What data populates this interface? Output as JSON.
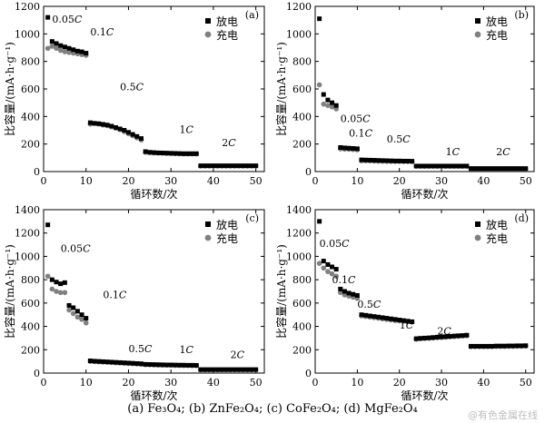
{
  "caption": "(a) Fe₃O₄; (b) ZnFe₂O₄; (c) CoFe₂O₄; (d) MgFe₂O₄",
  "watermark": "@有色金属在线",
  "chart_data": [
    {
      "type": "scatter",
      "panel_label": "(a)",
      "xlabel": "循环数/次",
      "ylabel": "比容量/(mA·h·g⁻¹)",
      "xlim": [
        0,
        52
      ],
      "ylim": [
        0,
        1200
      ],
      "xticks": [
        0,
        10,
        20,
        30,
        40,
        50
      ],
      "yticks": [
        0,
        200,
        400,
        600,
        800,
        1000,
        1200
      ],
      "legend": {
        "position": "top-right"
      },
      "series": [
        {
          "name": "放电",
          "marker": "square",
          "color": "#000000",
          "x": [
            1,
            2,
            3,
            4,
            5,
            6,
            7,
            8,
            9,
            10,
            11,
            12,
            13,
            14,
            15,
            16,
            17,
            18,
            19,
            20,
            21,
            22,
            23,
            24,
            25,
            26,
            27,
            28,
            29,
            30,
            31,
            32,
            33,
            34,
            35,
            36,
            37,
            38,
            39,
            40,
            41,
            42,
            43,
            44,
            45,
            46,
            47,
            48,
            49,
            50
          ],
          "y": [
            1120,
            945,
            930,
            915,
            905,
            895,
            885,
            875,
            870,
            860,
            355,
            350,
            348,
            343,
            338,
            330,
            320,
            310,
            300,
            285,
            270,
            255,
            240,
            145,
            140,
            138,
            136,
            135,
            134,
            133,
            132,
            131,
            130,
            130,
            130,
            130,
            42,
            42,
            42,
            42,
            42,
            42,
            42,
            42,
            42,
            42,
            42,
            42,
            42,
            42
          ]
        },
        {
          "name": "充电",
          "marker": "circle",
          "color": "#808080",
          "x": [
            1,
            2,
            3,
            4,
            5,
            6,
            7,
            8,
            9,
            10,
            11,
            12,
            13,
            14,
            15,
            16,
            17,
            18,
            19,
            20,
            21,
            22,
            23,
            24,
            25,
            26,
            27,
            28,
            29,
            30,
            31,
            32,
            33,
            34,
            35,
            36,
            37,
            38,
            39,
            40,
            41,
            42,
            43,
            44,
            45,
            46,
            47,
            48,
            49,
            50
          ],
          "y": [
            895,
            910,
            895,
            880,
            870,
            865,
            860,
            855,
            850,
            845,
            345,
            350,
            345,
            338,
            333,
            325,
            315,
            305,
            290,
            275,
            260,
            245,
            230,
            140,
            137,
            135,
            134,
            133,
            132,
            131,
            130,
            129,
            128,
            128,
            128,
            128,
            40,
            40,
            40,
            40,
            40,
            40,
            40,
            40,
            40,
            40,
            40,
            40,
            40,
            40
          ]
        }
      ],
      "annotations": [
        {
          "text": "0.05C",
          "x": 2,
          "y": 1080
        },
        {
          "text": "0.1C",
          "x": 11,
          "y": 990
        },
        {
          "text": "0.5C",
          "x": 18,
          "y": 590
        },
        {
          "text": "1C",
          "x": 32,
          "y": 280
        },
        {
          "text": "2C",
          "x": 42,
          "y": 185
        }
      ]
    },
    {
      "type": "scatter",
      "panel_label": "(b)",
      "xlabel": "循环数/次",
      "ylabel": "比容量/(mA·h·g⁻¹)",
      "xlim": [
        0,
        52
      ],
      "ylim": [
        0,
        1200
      ],
      "xticks": [
        0,
        10,
        20,
        30,
        40,
        50
      ],
      "yticks": [
        0,
        200,
        400,
        600,
        800,
        1000,
        1200
      ],
      "legend": {
        "position": "top-right"
      },
      "series": [
        {
          "name": "放电",
          "marker": "square",
          "color": "#000000",
          "x": [
            1,
            2,
            3,
            4,
            5,
            6,
            7,
            8,
            9,
            10,
            11,
            12,
            13,
            14,
            15,
            16,
            17,
            18,
            19,
            20,
            21,
            22,
            23,
            24,
            25,
            26,
            27,
            28,
            29,
            30,
            31,
            32,
            33,
            34,
            35,
            36,
            37,
            38,
            39,
            40,
            41,
            42,
            43,
            44,
            45,
            46,
            47,
            48,
            49,
            50
          ],
          "y": [
            1110,
            560,
            520,
            500,
            480,
            175,
            172,
            170,
            168,
            166,
            85,
            84,
            83,
            82,
            81,
            80,
            79,
            78,
            77,
            77,
            76,
            76,
            75,
            40,
            40,
            40,
            40,
            40,
            40,
            40,
            40,
            40,
            40,
            40,
            40,
            40,
            22,
            22,
            22,
            22,
            22,
            22,
            22,
            22,
            22,
            22,
            22,
            22,
            22,
            22
          ]
        },
        {
          "name": "充电",
          "marker": "circle",
          "color": "#808080",
          "x": [
            1,
            2,
            3,
            4,
            5,
            6,
            7,
            8,
            9,
            10,
            11,
            12,
            13,
            14,
            15,
            16,
            17,
            18,
            19,
            20,
            21,
            22,
            23,
            24,
            25,
            26,
            27,
            28,
            29,
            30,
            31,
            32,
            33,
            34,
            35,
            36,
            37,
            38,
            39,
            40,
            41,
            42,
            43,
            44,
            45,
            46,
            47,
            48,
            49,
            50
          ],
          "y": [
            630,
            490,
            480,
            470,
            455,
            165,
            163,
            162,
            160,
            158,
            78,
            78,
            77,
            76,
            75,
            75,
            74,
            74,
            73,
            73,
            72,
            72,
            72,
            38,
            38,
            38,
            38,
            38,
            38,
            38,
            38,
            38,
            38,
            38,
            38,
            38,
            20,
            20,
            20,
            20,
            20,
            20,
            20,
            20,
            20,
            20,
            20,
            20,
            20,
            20
          ]
        }
      ],
      "annotations": [
        {
          "text": "0.05C",
          "x": 6,
          "y": 360
        },
        {
          "text": "0.1C",
          "x": 8,
          "y": 255
        },
        {
          "text": "0.5C",
          "x": 17,
          "y": 210
        },
        {
          "text": "1C",
          "x": 31,
          "y": 120
        },
        {
          "text": "2C",
          "x": 43,
          "y": 120
        }
      ]
    },
    {
      "type": "scatter",
      "panel_label": "(c)",
      "xlabel": "循环数/次",
      "ylabel": "比容量/(mA·h·g⁻¹)",
      "xlim": [
        0,
        52
      ],
      "ylim": [
        0,
        1400
      ],
      "xticks": [
        0,
        10,
        20,
        30,
        40,
        50
      ],
      "yticks": [
        0,
        200,
        400,
        600,
        800,
        1000,
        1200,
        1400
      ],
      "legend": {
        "position": "top-right"
      },
      "series": [
        {
          "name": "放电",
          "marker": "square",
          "color": "#000000",
          "x": [
            1,
            2,
            3,
            4,
            5,
            6,
            7,
            8,
            9,
            10,
            11,
            12,
            13,
            14,
            15,
            16,
            17,
            18,
            19,
            20,
            21,
            22,
            23,
            24,
            25,
            26,
            27,
            28,
            29,
            30,
            31,
            32,
            33,
            34,
            35,
            36,
            37,
            38,
            39,
            40,
            41,
            42,
            43,
            44,
            45,
            46,
            47,
            48,
            49,
            50
          ],
          "y": [
            1270,
            800,
            780,
            765,
            775,
            580,
            560,
            530,
            500,
            470,
            105,
            102,
            100,
            98,
            96,
            94,
            92,
            90,
            88,
            86,
            84,
            82,
            80,
            75,
            74,
            73,
            72,
            71,
            70,
            70,
            69,
            68,
            68,
            67,
            67,
            66,
            30,
            30,
            30,
            30,
            30,
            30,
            30,
            30,
            30,
            30,
            30,
            30,
            30,
            30
          ]
        },
        {
          "name": "充电",
          "marker": "circle",
          "color": "#808080",
          "x": [
            1,
            2,
            3,
            4,
            5,
            6,
            7,
            8,
            9,
            10,
            11,
            12,
            13,
            14,
            15,
            16,
            17,
            18,
            19,
            20,
            21,
            22,
            23,
            24,
            25,
            26,
            27,
            28,
            29,
            30,
            31,
            32,
            33,
            34,
            35,
            36,
            37,
            38,
            39,
            40,
            41,
            42,
            43,
            44,
            45,
            46,
            47,
            48,
            49,
            50
          ],
          "y": [
            830,
            720,
            700,
            690,
            690,
            540,
            510,
            480,
            460,
            430,
            100,
            98,
            96,
            94,
            92,
            90,
            88,
            86,
            84,
            82,
            80,
            78,
            76,
            72,
            71,
            70,
            69,
            68,
            68,
            67,
            66,
            66,
            65,
            65,
            64,
            64,
            28,
            28,
            28,
            28,
            28,
            28,
            28,
            28,
            28,
            28,
            28,
            28,
            28,
            28
          ]
        }
      ],
      "annotations": [
        {
          "text": "0.05C",
          "x": 4,
          "y": 1040
        },
        {
          "text": "0.1C",
          "x": 14,
          "y": 640
        },
        {
          "text": "0.5C",
          "x": 20,
          "y": 180
        },
        {
          "text": "1C",
          "x": 32,
          "y": 170
        },
        {
          "text": "2C",
          "x": 44,
          "y": 130
        }
      ]
    },
    {
      "type": "scatter",
      "panel_label": "(d)",
      "xlabel": "循环数/次",
      "ylabel": "比容量/(mA·h·g⁻¹)",
      "xlim": [
        0,
        52
      ],
      "ylim": [
        0,
        1400
      ],
      "xticks": [
        0,
        10,
        20,
        30,
        40,
        50
      ],
      "yticks": [
        0,
        200,
        400,
        600,
        800,
        1000,
        1200,
        1400
      ],
      "legend": {
        "position": "top-right"
      },
      "series": [
        {
          "name": "放电",
          "marker": "square",
          "color": "#000000",
          "x": [
            1,
            2,
            3,
            4,
            5,
            6,
            7,
            8,
            9,
            10,
            11,
            12,
            13,
            14,
            15,
            16,
            17,
            18,
            19,
            20,
            21,
            22,
            23,
            24,
            25,
            26,
            27,
            28,
            29,
            30,
            31,
            32,
            33,
            34,
            35,
            36,
            37,
            38,
            39,
            40,
            41,
            42,
            43,
            44,
            45,
            46,
            47,
            48,
            49,
            50
          ],
          "y": [
            1300,
            960,
            930,
            910,
            890,
            720,
            700,
            685,
            675,
            665,
            500,
            495,
            490,
            485,
            480,
            475,
            470,
            465,
            460,
            455,
            450,
            445,
            440,
            295,
            298,
            300,
            302,
            305,
            308,
            310,
            312,
            315,
            318,
            320,
            322,
            325,
            230,
            230,
            230,
            230,
            230,
            230,
            232,
            232,
            232,
            233,
            233,
            234,
            234,
            235
          ]
        },
        {
          "name": "充电",
          "marker": "circle",
          "color": "#808080",
          "x": [
            1,
            2,
            3,
            4,
            5,
            6,
            7,
            8,
            9,
            10,
            11,
            12,
            13,
            14,
            15,
            16,
            17,
            18,
            19,
            20,
            21,
            22,
            23,
            24,
            25,
            26,
            27,
            28,
            29,
            30,
            31,
            32,
            33,
            34,
            35,
            36,
            37,
            38,
            39,
            40,
            41,
            42,
            43,
            44,
            45,
            46,
            47,
            48,
            49,
            50
          ],
          "y": [
            940,
            900,
            870,
            850,
            830,
            690,
            670,
            660,
            650,
            640,
            490,
            485,
            480,
            475,
            470,
            465,
            460,
            455,
            450,
            447,
            444,
            440,
            436,
            290,
            293,
            296,
            298,
            300,
            303,
            305,
            308,
            310,
            312,
            315,
            318,
            320,
            226,
            226,
            226,
            226,
            226,
            226,
            228,
            228,
            228,
            229,
            229,
            230,
            230,
            231
          ]
        }
      ],
      "annotations": [
        {
          "text": "0.05C",
          "x": 1,
          "y": 1080
        },
        {
          "text": "0.1C",
          "x": 4,
          "y": 770
        },
        {
          "text": "0.5C",
          "x": 10,
          "y": 560
        },
        {
          "text": "1C",
          "x": 20,
          "y": 380
        },
        {
          "text": "2C",
          "x": 29,
          "y": 330
        }
      ]
    }
  ]
}
